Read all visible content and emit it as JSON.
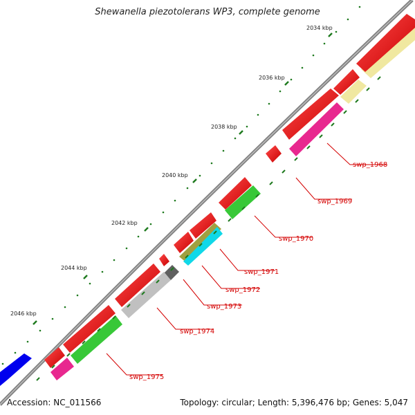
{
  "title": "Shewanella piezotolerans WP3, complete genome",
  "footer": {
    "accession": "Accession: NC_011566",
    "summary": "Topology: circular; Length: 5,396,476 bp; Genes: 5,047"
  },
  "ticks": [
    {
      "label": "2034 kbp"
    },
    {
      "label": "2036 kbp"
    },
    {
      "label": "2038 kbp"
    },
    {
      "label": "2040 kbp"
    },
    {
      "label": "2042 kbp"
    },
    {
      "label": "2044 kbp"
    },
    {
      "label": "2046 kbp"
    }
  ],
  "genes": [
    {
      "label": "swp_1968"
    },
    {
      "label": "swp_1969"
    },
    {
      "label": "swp_1970"
    },
    {
      "label": "swp_1971"
    },
    {
      "label": "swp_1972"
    },
    {
      "label": "swp_1973"
    },
    {
      "label": "swp_1974"
    },
    {
      "label": "swp_1975"
    }
  ],
  "colors": {
    "backbone": "#808080",
    "cds": "#ff0000",
    "feature_magenta": "#e8288f",
    "feature_green": "#38c838",
    "feature_gray": "#c0c0c0",
    "feature_darkgray": "#606060",
    "feature_cyan": "#10d8e8",
    "feature_olive": "#a0a040",
    "feature_khaki": "#f0e8a0",
    "feature_blue": "#0000ee",
    "tick": "#1e7a1e",
    "label": "#d40000"
  }
}
